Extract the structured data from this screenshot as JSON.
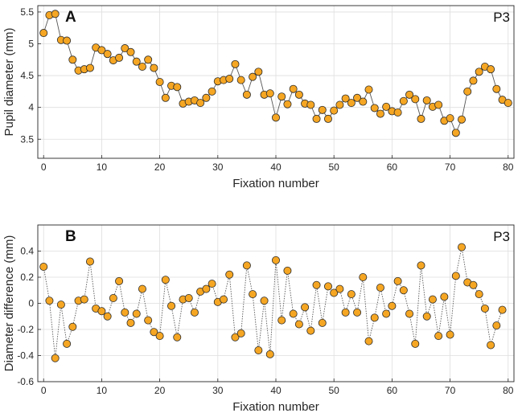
{
  "colors": {
    "marker_fill": "#F5A623",
    "marker_stroke": "#2a2a2a",
    "line": "#555555",
    "axis": "#262626",
    "grid": "#dedede",
    "text": "#262626"
  },
  "chart_data": [
    {
      "type": "line",
      "panel_label": "A",
      "participant": "P3",
      "title": "",
      "xlabel": "Fixation number",
      "ylabel": "Pupil diameter (mm)",
      "xlim": [
        -1,
        81
      ],
      "ylim": [
        3.2,
        5.6
      ],
      "xticks": [
        0,
        10,
        20,
        30,
        40,
        50,
        60,
        70,
        80
      ],
      "yticks": [
        3.5,
        4,
        4.5,
        5,
        5.5
      ],
      "ytick_labels": [
        "3.5",
        "4",
        "4.5",
        "5",
        "5.5"
      ],
      "grid": true,
      "line_style": "solid",
      "series": [
        {
          "name": "P3",
          "x": [
            0,
            1,
            2,
            3,
            4,
            5,
            6,
            7,
            8,
            9,
            10,
            11,
            12,
            13,
            14,
            15,
            16,
            17,
            18,
            19,
            20,
            21,
            22,
            23,
            24,
            25,
            26,
            27,
            28,
            29,
            30,
            31,
            32,
            33,
            34,
            35,
            36,
            37,
            38,
            39,
            40,
            41,
            42,
            43,
            44,
            45,
            46,
            47,
            48,
            49,
            50,
            51,
            52,
            53,
            54,
            55,
            56,
            57,
            58,
            59,
            60,
            61,
            62,
            63,
            64,
            65,
            66,
            67,
            68,
            69,
            70,
            71,
            72,
            73,
            74,
            75,
            76,
            77,
            78,
            79,
            80
          ],
          "values": [
            5.17,
            5.45,
            5.47,
            5.06,
            5.05,
            4.75,
            4.58,
            4.6,
            4.62,
            4.94,
            4.9,
            4.84,
            4.74,
            4.78,
            4.93,
            4.87,
            4.72,
            4.64,
            4.75,
            4.62,
            4.4,
            4.15,
            4.34,
            4.32,
            4.06,
            4.09,
            4.11,
            4.07,
            4.15,
            4.25,
            4.41,
            4.43,
            4.45,
            4.68,
            4.43,
            4.2,
            4.48,
            4.56,
            4.2,
            4.22,
            3.84,
            4.17,
            4.05,
            4.29,
            4.2,
            4.06,
            4.04,
            3.82,
            3.96,
            3.82,
            3.95,
            4.04,
            4.14,
            4.07,
            4.15,
            4.09,
            4.28,
            3.99,
            3.9,
            4.01,
            3.94,
            3.92,
            4.1,
            4.2,
            4.13,
            3.82,
            4.11,
            4.01,
            4.04,
            3.79,
            3.83,
            3.6,
            3.81,
            4.25,
            4.42,
            4.56,
            4.64,
            4.6,
            4.29,
            4.12,
            4.07
          ]
        }
      ]
    },
    {
      "type": "line",
      "panel_label": "B",
      "participant": "P3",
      "title": "",
      "xlabel": "Fixation number",
      "ylabel": "Diameter difference (mm)",
      "xlim": [
        -1,
        81
      ],
      "ylim": [
        -0.6,
        0.6
      ],
      "xticks": [
        0,
        10,
        20,
        30,
        40,
        50,
        60,
        70,
        80
      ],
      "yticks": [
        -0.6,
        -0.4,
        -0.2,
        0,
        0.2,
        0.4
      ],
      "ytick_labels": [
        "-0.6",
        "-0.4",
        "-0.2",
        "0",
        "0.2",
        "0.4"
      ],
      "grid": true,
      "line_style": "dotted",
      "series": [
        {
          "name": "P3",
          "x": [
            0,
            1,
            2,
            3,
            4,
            5,
            6,
            7,
            8,
            9,
            10,
            11,
            12,
            13,
            14,
            15,
            16,
            17,
            18,
            19,
            20,
            21,
            22,
            23,
            24,
            25,
            26,
            27,
            28,
            29,
            30,
            31,
            32,
            33,
            34,
            35,
            36,
            37,
            38,
            39,
            40,
            41,
            42,
            43,
            44,
            45,
            46,
            47,
            48,
            49,
            50,
            51,
            52,
            53,
            54,
            55,
            56,
            57,
            58,
            59,
            60,
            61,
            62,
            63,
            64,
            65,
            66,
            67,
            68,
            69,
            70,
            71,
            72,
            73,
            74,
            75,
            76,
            77,
            78,
            79
          ],
          "values": [
            0.28,
            0.02,
            -0.42,
            -0.01,
            -0.31,
            -0.18,
            0.02,
            0.03,
            0.32,
            -0.04,
            -0.06,
            -0.1,
            0.04,
            0.17,
            -0.07,
            -0.15,
            -0.08,
            0.11,
            -0.13,
            -0.22,
            -0.25,
            0.18,
            -0.02,
            -0.26,
            0.03,
            0.04,
            -0.07,
            0.09,
            0.11,
            0.15,
            0.01,
            0.03,
            0.22,
            -0.26,
            -0.23,
            0.29,
            0.07,
            -0.36,
            0.02,
            -0.39,
            0.33,
            -0.13,
            0.25,
            -0.08,
            -0.16,
            -0.03,
            -0.21,
            0.14,
            -0.15,
            0.13,
            0.08,
            0.11,
            -0.07,
            0.07,
            -0.07,
            0.2,
            -0.29,
            -0.11,
            0.12,
            -0.08,
            -0.02,
            0.17,
            0.1,
            -0.08,
            -0.31,
            0.29,
            -0.1,
            0.03,
            -0.25,
            0.05,
            -0.24,
            0.21,
            0.43,
            0.16,
            0.14,
            0.07,
            -0.04,
            -0.32,
            -0.17,
            -0.05
          ]
        }
      ]
    }
  ]
}
